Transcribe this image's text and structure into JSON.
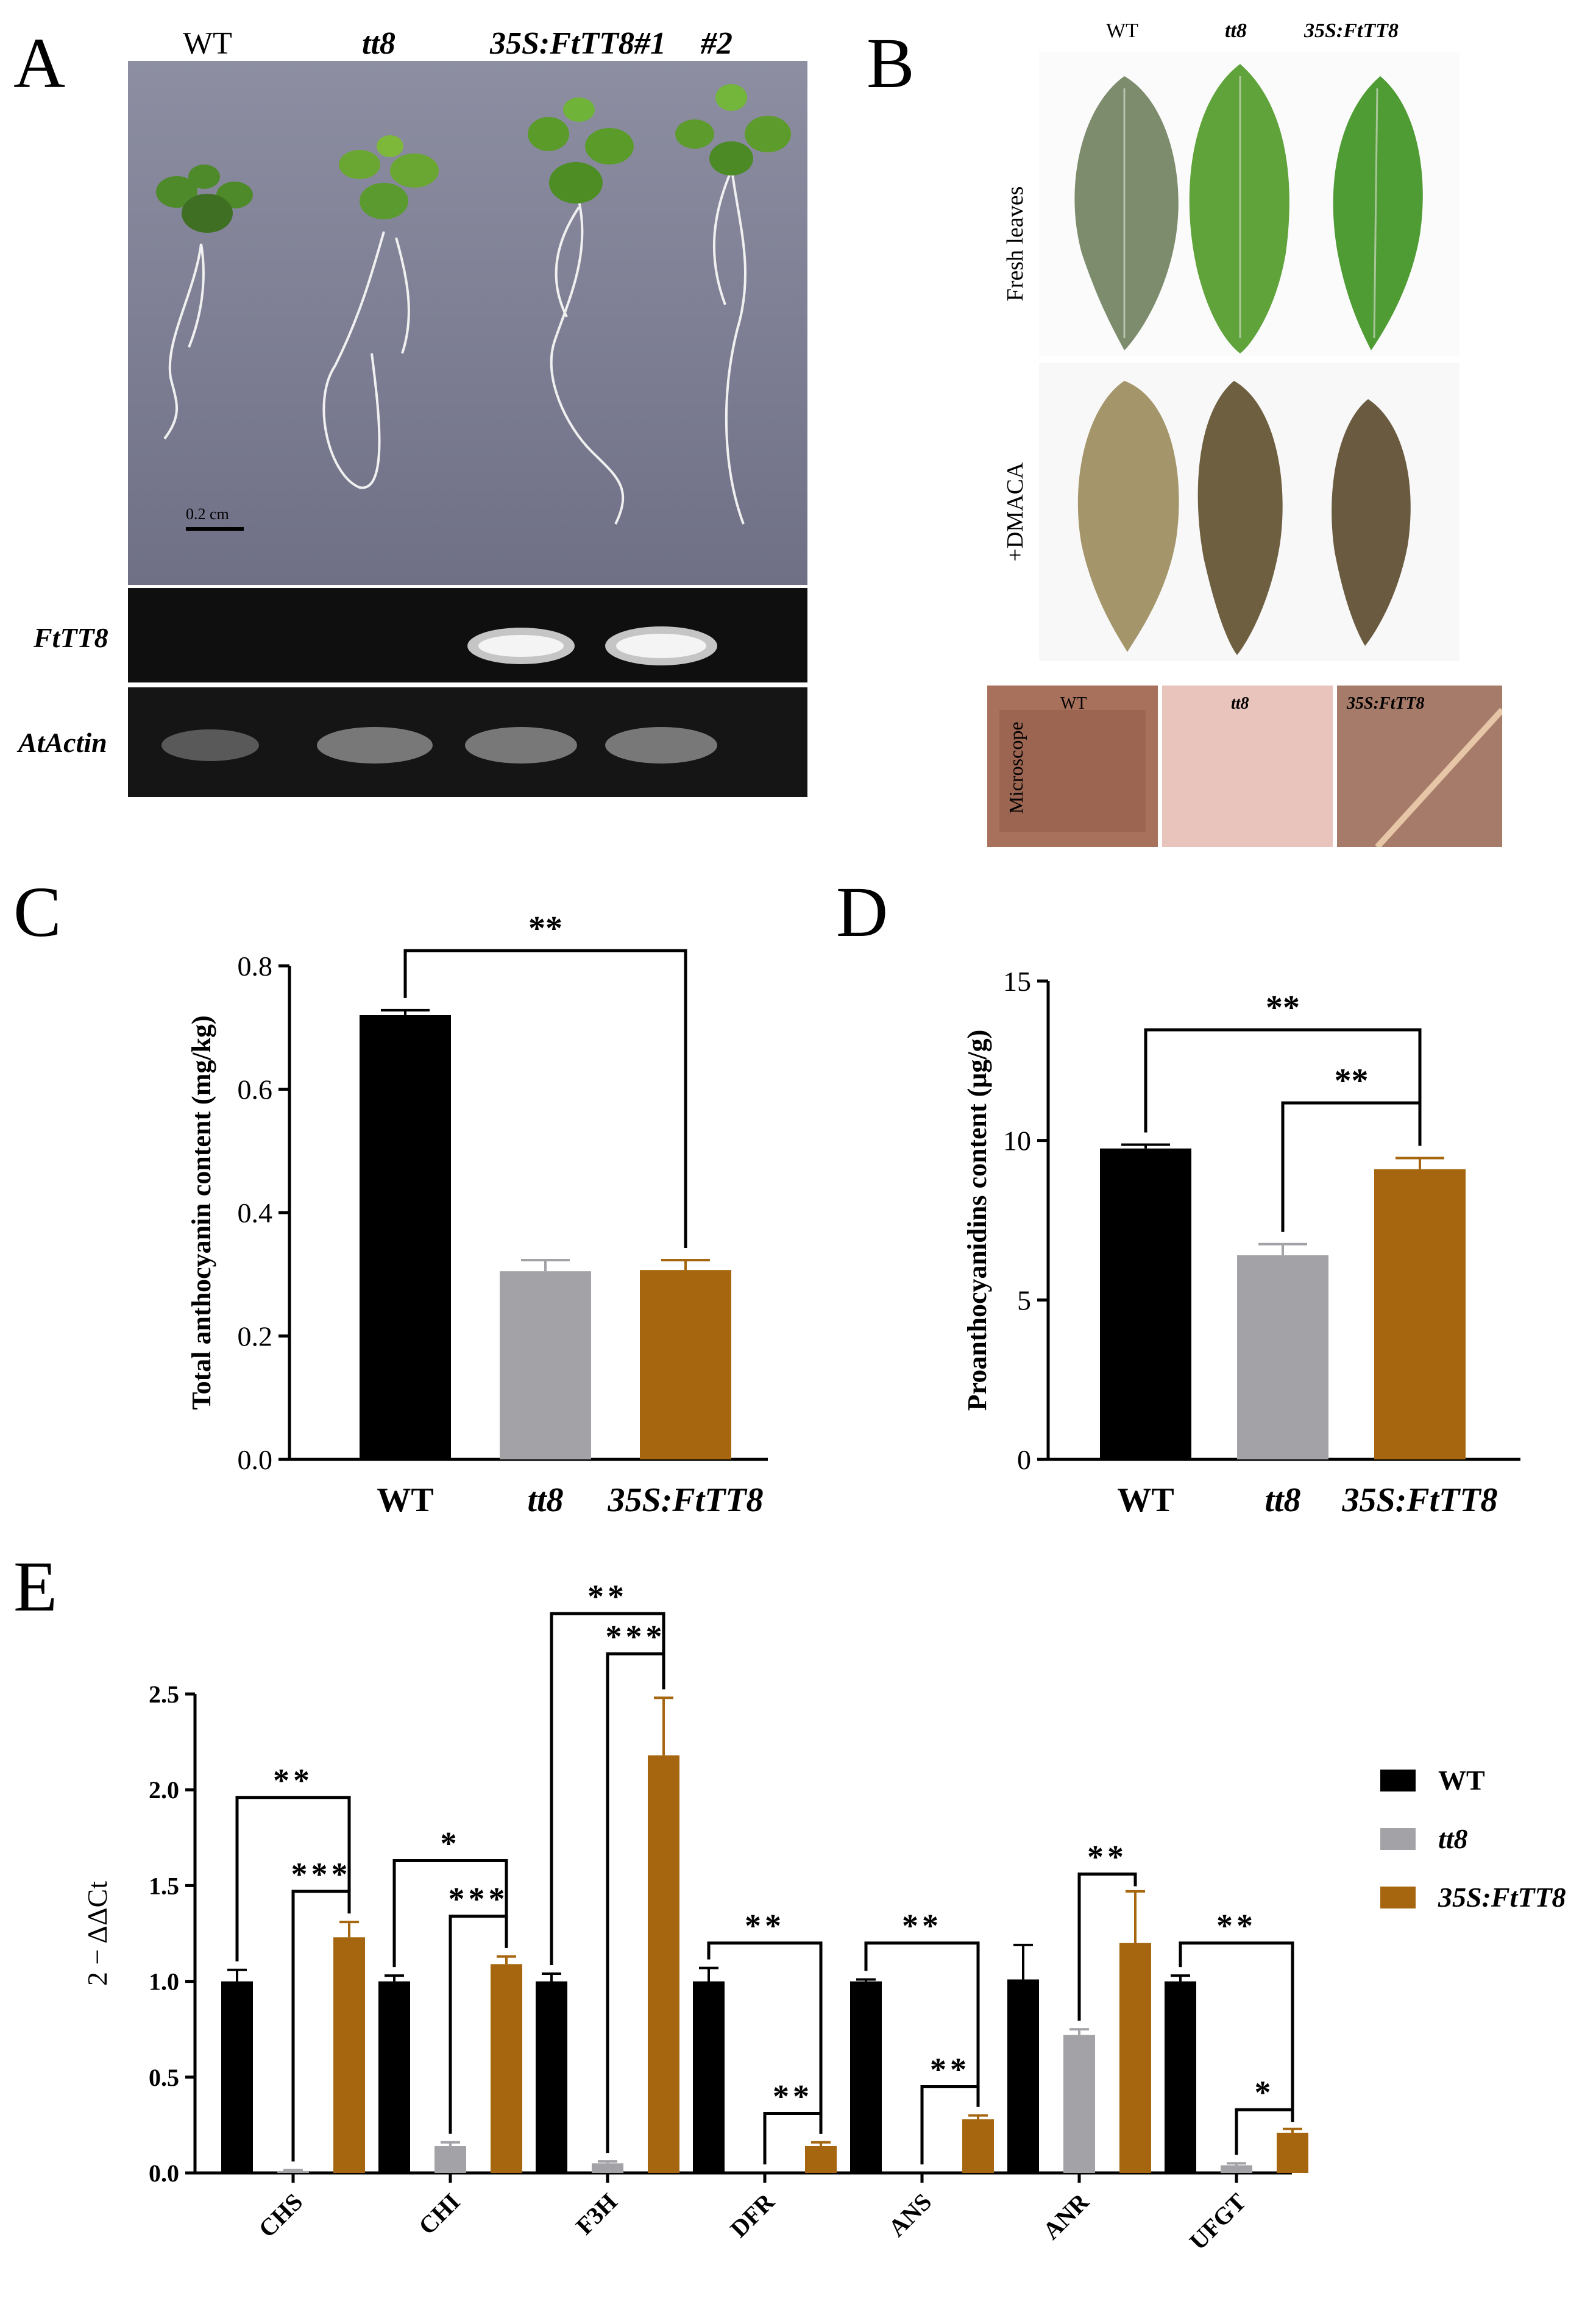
{
  "panels": {
    "a": "A",
    "b": "B",
    "c": "C",
    "d": "D",
    "e": "E"
  },
  "panel_a": {
    "genotypes": [
      "WT",
      "tt8",
      "35S:FtTT8#1",
      "#2"
    ],
    "scale_bar": "0.2 cm",
    "gel_rows": [
      "FtTT8",
      "AtActin"
    ]
  },
  "panel_b": {
    "genotypes": [
      "WT",
      "tt8",
      "35S:FtTT8"
    ],
    "row_labels": [
      "Fresh leaves",
      "+DMACA",
      "Microscope"
    ],
    "micro_labels": [
      "WT",
      "tt8",
      "35S:FtTT8"
    ]
  },
  "colors": {
    "wt": "#000000",
    "tt8": "#a3a3a7",
    "ftt8": "#a5660f"
  },
  "chart_data": [
    {
      "id": "C",
      "type": "bar",
      "categories": [
        "WT",
        "tt8",
        "35S:FtTT8"
      ],
      "values": [
        0.72,
        0.305,
        0.307
      ],
      "errors": [
        0.008,
        0.018,
        0.016
      ],
      "ylabel": "Total anthocyanin content (mg/kg)",
      "ylim": [
        0,
        0.8
      ],
      "yticks": [
        "0.0",
        "0.2",
        "0.4",
        "0.6",
        "0.8"
      ],
      "significance": [
        {
          "from": 0,
          "to": 2,
          "label": "**"
        }
      ]
    },
    {
      "id": "D",
      "type": "bar",
      "categories": [
        "WT",
        "tt8",
        "35S:FtTT8"
      ],
      "values": [
        9.75,
        6.4,
        9.1
      ],
      "errors": [
        0.12,
        0.35,
        0.35
      ],
      "ylabel": "Proanthocyanidins content (μg/g)",
      "ylim": [
        0,
        15
      ],
      "yticks": [
        "0",
        "5",
        "10",
        "15"
      ],
      "significance": [
        {
          "from": 0,
          "to": 2,
          "label": "**"
        },
        {
          "from": 1,
          "to": 2,
          "label": "**"
        }
      ]
    },
    {
      "id": "E",
      "type": "bar",
      "categories": [
        "CHS",
        "CHI",
        "F3H",
        "DFR",
        "ANS",
        "ANR",
        "UFGT"
      ],
      "ylabel": "2 − ΔΔCt",
      "ylim": [
        0,
        2.5
      ],
      "yticks": [
        "0.0",
        "0.5",
        "1.0",
        "1.5",
        "2.0",
        "2.5"
      ],
      "legend_position": "right",
      "series": [
        {
          "name": "WT",
          "values": [
            1.0,
            1.0,
            1.0,
            1.0,
            1.0,
            1.01,
            1.0
          ],
          "errors": [
            0.06,
            0.03,
            0.04,
            0.07,
            0.01,
            0.18,
            0.03
          ]
        },
        {
          "name": "tt8",
          "values": [
            0.01,
            0.14,
            0.05,
            0.0,
            0.0,
            0.72,
            0.04
          ],
          "errors": [
            0.005,
            0.02,
            0.01,
            0.0,
            0.0,
            0.03,
            0.01
          ]
        },
        {
          "name": "35S:FtTT8",
          "values": [
            1.23,
            1.09,
            2.18,
            0.14,
            0.28,
            1.2,
            0.21
          ],
          "errors": [
            0.08,
            0.04,
            0.3,
            0.02,
            0.02,
            0.27,
            0.02
          ]
        }
      ],
      "significance": [
        {
          "category": 0,
          "pair": "wt-ftt8",
          "label": "**"
        },
        {
          "category": 0,
          "pair": "tt8-ftt8",
          "label": "***"
        },
        {
          "category": 1,
          "pair": "wt-ftt8",
          "label": "*"
        },
        {
          "category": 1,
          "pair": "tt8-ftt8",
          "label": "***"
        },
        {
          "category": 2,
          "pair": "wt-ftt8",
          "label": "**"
        },
        {
          "category": 2,
          "pair": "tt8-ftt8",
          "label": "***"
        },
        {
          "category": 3,
          "pair": "wt-ftt8",
          "label": "**"
        },
        {
          "category": 3,
          "pair": "tt8-ftt8",
          "label": "**"
        },
        {
          "category": 4,
          "pair": "wt-ftt8",
          "label": "**"
        },
        {
          "category": 4,
          "pair": "tt8-ftt8",
          "label": "**"
        },
        {
          "category": 5,
          "pair": "tt8-ftt8",
          "label": "**"
        },
        {
          "category": 6,
          "pair": "wt-ftt8",
          "label": "**"
        },
        {
          "category": 6,
          "pair": "tt8-ftt8",
          "label": "*"
        }
      ]
    }
  ]
}
